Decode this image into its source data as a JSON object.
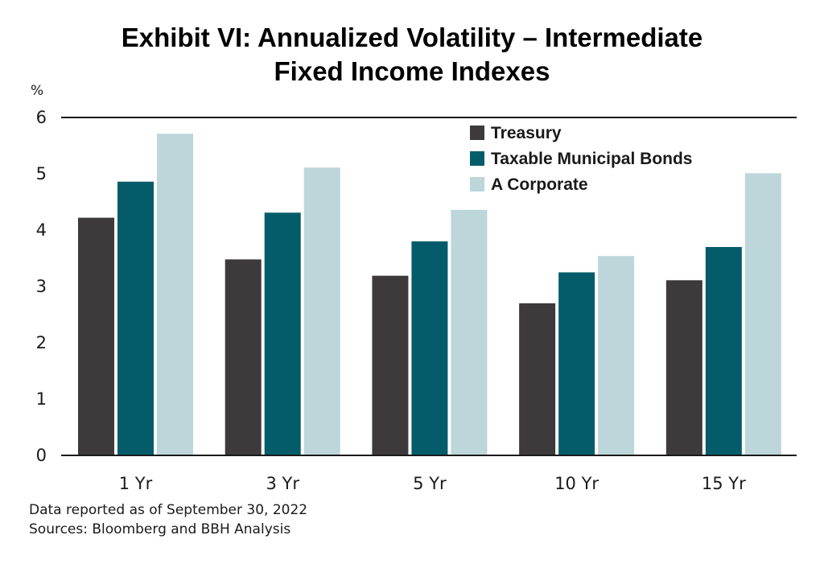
{
  "chart_data": {
    "type": "bar",
    "title_lines": [
      "Exhibit VI: Annualized Volatility – Intermediate",
      "Fixed Income Indexes"
    ],
    "ylabel": "%",
    "xlabel": "",
    "ylim": [
      0,
      6
    ],
    "yticks": [
      0,
      1,
      2,
      3,
      4,
      5,
      6
    ],
    "categories": [
      "1 Yr",
      "3 Yr",
      "5 Yr",
      "10 Yr",
      "15 Yr"
    ],
    "series": [
      {
        "name": "Treasury",
        "color": "#3e3a3b",
        "values": [
          4.22,
          3.48,
          3.19,
          2.7,
          3.11
        ]
      },
      {
        "name": "Taxable Municipal Bonds",
        "color": "#045c6a",
        "values": [
          4.86,
          4.31,
          3.8,
          3.25,
          3.7
        ]
      },
      {
        "name": "A Corporate",
        "color": "#bdd6d9",
        "values": [
          5.71,
          5.11,
          4.36,
          3.54,
          5.01
        ]
      }
    ],
    "legend_position": "top-right",
    "grid": false
  },
  "footnotes": {
    "data_reported": "Data reported as of September 30, 2022",
    "sources": "Sources: Bloomberg and BBH Analysis"
  }
}
